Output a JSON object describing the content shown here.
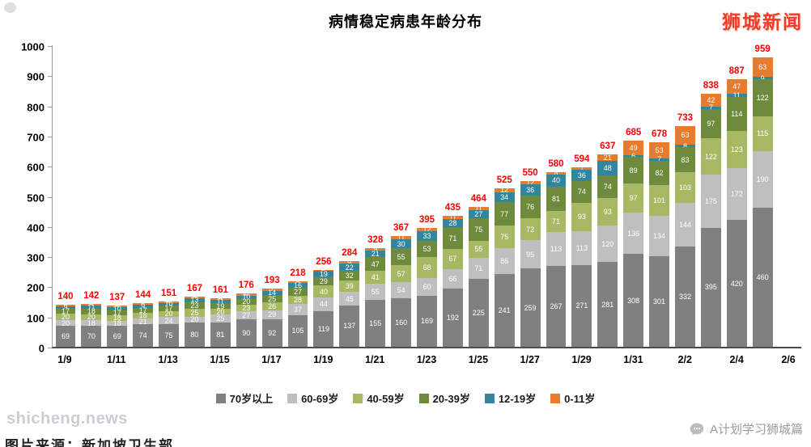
{
  "title": "病情稳定病患年龄分布",
  "branding": {
    "top_right": "狮城新闻",
    "bottom_right": "A计划学习狮城篇",
    "watermark": "shicheng.news",
    "source_caption": "图片来源：新加坡卫生部"
  },
  "colors": {
    "total_label": "#ff0000",
    "axis_line": "#4d4d4d",
    "title_text": "#000000",
    "logo_red": "#f23b25"
  },
  "chart_data": {
    "type": "bar",
    "stacked": true,
    "title": "病情稳定病患年龄分布",
    "xlabel": "",
    "ylabel": "",
    "ylim": [
      0,
      1000
    ],
    "grid": false,
    "legend_position": "bottom",
    "y_ticks": [
      0,
      100,
      200,
      300,
      400,
      500,
      600,
      700,
      800,
      900,
      1000
    ],
    "x_tick_labels": [
      "1/9",
      "1/11",
      "1/13",
      "1/15",
      "1/17",
      "1/19",
      "1/21",
      "1/23",
      "1/25",
      "1/27",
      "1/29",
      "1/31",
      "2/2",
      "2/4",
      "2/6"
    ],
    "categories": [
      "1/9",
      "1/10",
      "1/11",
      "1/12",
      "1/13",
      "1/14",
      "1/15",
      "1/16",
      "1/17",
      "1/18",
      "1/19",
      "1/20",
      "1/21",
      "1/22",
      "1/23",
      "1/24",
      "1/25",
      "1/26",
      "1/27",
      "1/28",
      "1/29",
      "1/30",
      "1/31",
      "2/1",
      "2/2",
      "2/3",
      "2/4",
      "2/5"
    ],
    "totals": [
      140,
      142,
      137,
      144,
      151,
      167,
      161,
      176,
      193,
      218,
      256,
      284,
      328,
      367,
      395,
      435,
      464,
      525,
      550,
      580,
      594,
      637,
      685,
      678,
      733,
      838,
      887,
      959
    ],
    "series": [
      {
        "name": "70岁以上",
        "color": "#808080",
        "values": [
          69,
          70,
          69,
          74,
          75,
          80,
          81,
          90,
          92,
          105,
          119,
          137,
          155,
          160,
          169,
          192,
          225,
          241,
          259,
          267,
          271,
          281,
          308,
          301,
          332,
          395,
          420,
          460
        ]
      },
      {
        "name": "60-69岁",
        "color": "#bfbfbf",
        "values": [
          20,
          18,
          18,
          21,
          24,
          20,
          25,
          27,
          29,
          37,
          44,
          45,
          55,
          54,
          60,
          66,
          71,
          86,
          95,
          113,
          113,
          120,
          136,
          134,
          144,
          175,
          172,
          190
        ]
      },
      {
        "name": "40-59岁",
        "color": "#a8b964",
        "values": [
          20,
          20,
          18,
          18,
          20,
          25,
          20,
          23,
          26,
          28,
          40,
          39,
          41,
          57,
          68,
          67,
          55,
          75,
          72,
          71,
          93,
          93,
          97,
          101,
          103,
          122,
          123,
          115
        ]
      },
      {
        "name": "20-39岁",
        "color": "#6e8b3d",
        "values": [
          17,
          18,
          17,
          17,
          17,
          23,
          19,
          20,
          25,
          27,
          29,
          32,
          47,
          55,
          53,
          71,
          75,
          77,
          76,
          81,
          74,
          74,
          89,
          82,
          83,
          97,
          114,
          122
        ]
      },
      {
        "name": "12-19岁",
        "color": "#31859c",
        "values": [
          9,
          11,
          10,
          9,
          10,
          13,
          11,
          10,
          14,
          16,
          19,
          22,
          21,
          30,
          33,
          28,
          27,
          34,
          36,
          40,
          36,
          48,
          6,
          7,
          8,
          7,
          11,
          9
        ]
      },
      {
        "name": "0-11岁",
        "color": "#e97b2d",
        "values": [
          5,
          5,
          5,
          5,
          5,
          6,
          5,
          6,
          7,
          5,
          5,
          9,
          9,
          11,
          12,
          11,
          11,
          12,
          12,
          8,
          7,
          21,
          49,
          53,
          63,
          42,
          47,
          63
        ]
      }
    ]
  }
}
